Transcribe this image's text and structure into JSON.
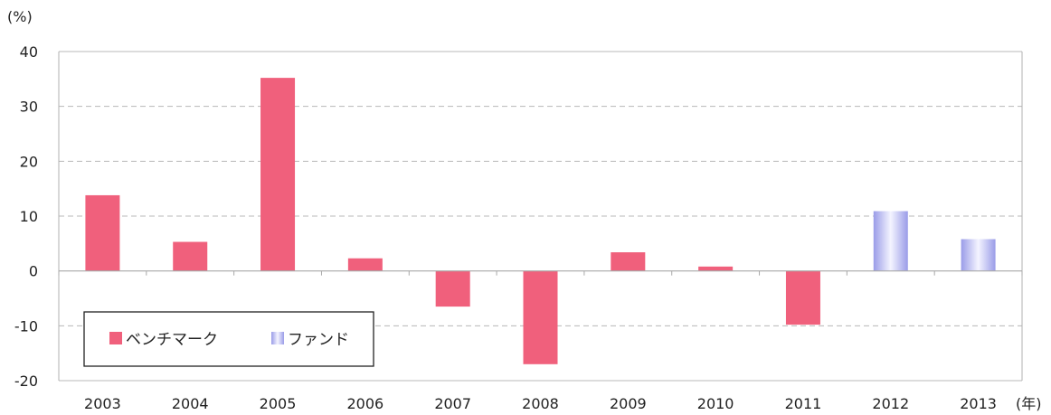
{
  "chart_data": {
    "type": "bar",
    "y_unit_label": "(%)",
    "x_unit_label": "(年)",
    "categories": [
      "2003",
      "2004",
      "2005",
      "2006",
      "2007",
      "2008",
      "2009",
      "2010",
      "2011",
      "2012",
      "2013"
    ],
    "values": [
      13.8,
      5.3,
      35.2,
      2.3,
      -6.5,
      -17.0,
      3.4,
      0.8,
      -9.8,
      10.9,
      5.8
    ],
    "bar_series": [
      "ベンチマーク",
      "ベンチマーク",
      "ベンチマーク",
      "ベンチマーク",
      "ベンチマーク",
      "ベンチマーク",
      "ベンチマーク",
      "ベンチマーク",
      "ベンチマーク",
      "ファンド",
      "ファンド"
    ],
    "series": [
      {
        "name": "ベンチマーク",
        "color": "#f0607c"
      },
      {
        "name": "ファンド",
        "color": "#9a9ce8"
      }
    ],
    "ylim": [
      -20,
      40
    ],
    "yticks": [
      "40",
      "30",
      "20",
      "10",
      "0",
      "-10",
      "-20"
    ],
    "grid": "horizontal dashed",
    "legend_position": "bottom-left"
  }
}
